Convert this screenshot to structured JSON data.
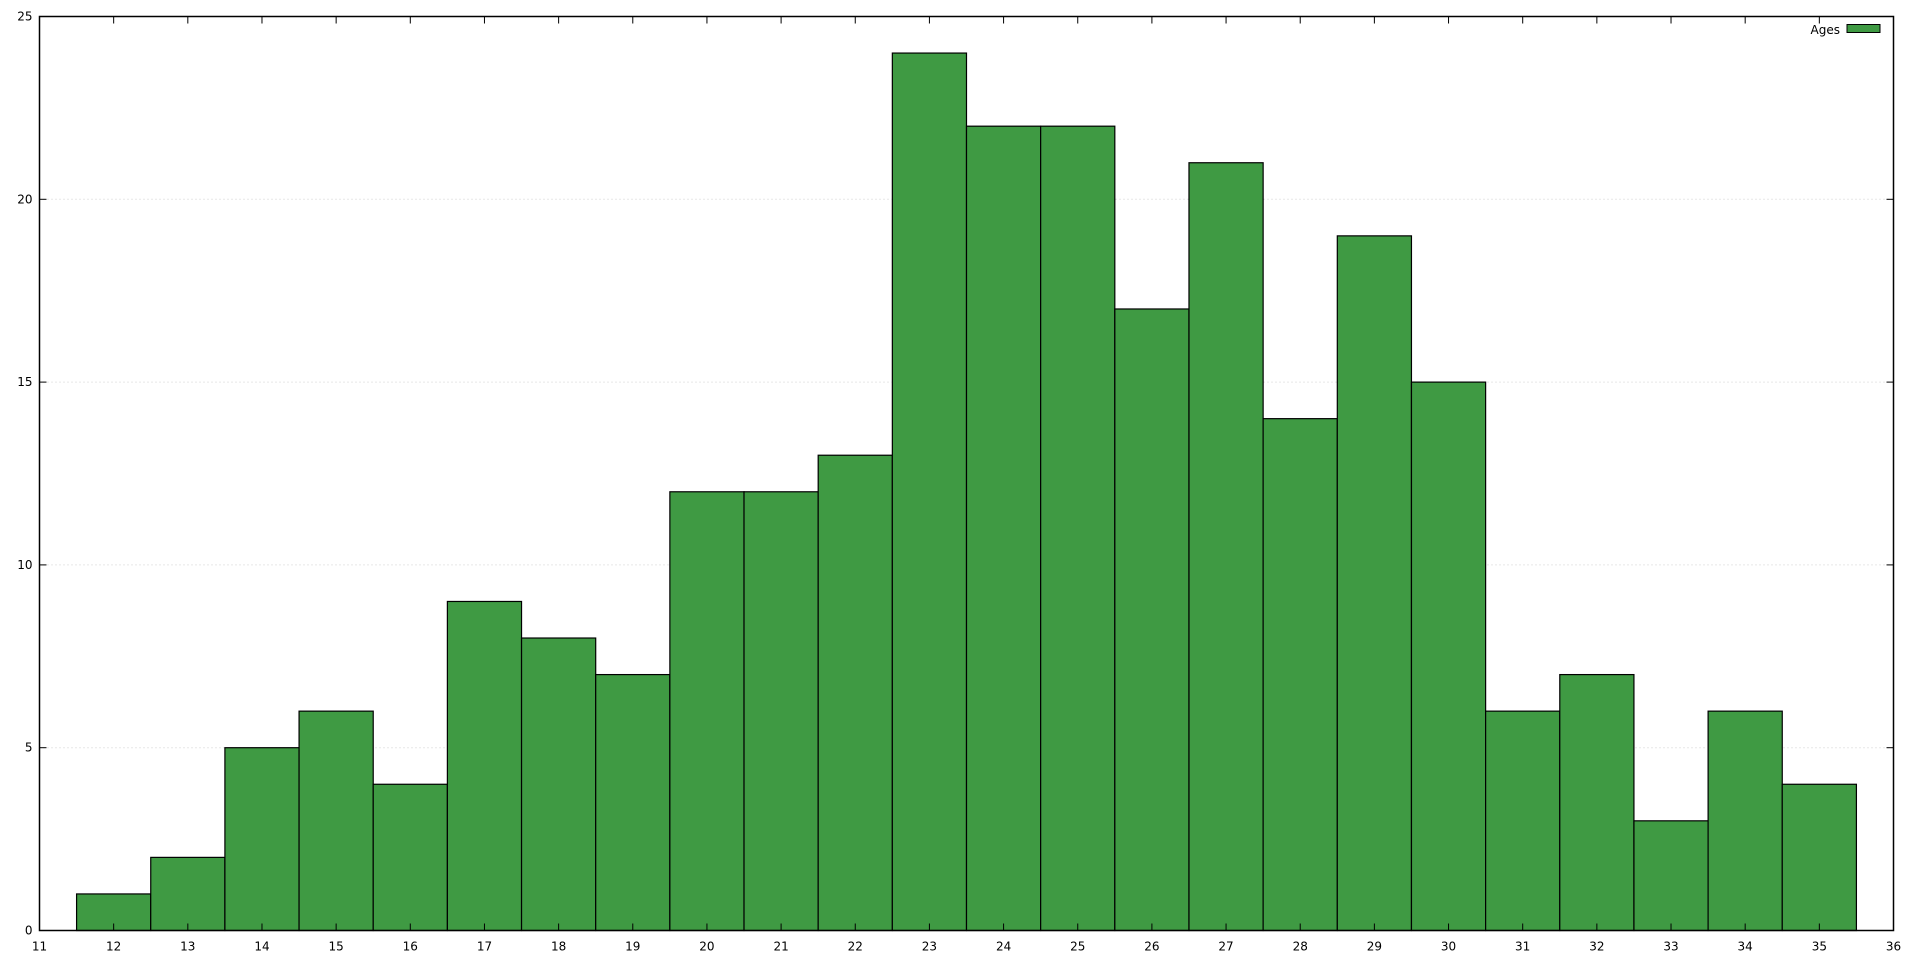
{
  "chart_data": {
    "type": "bar",
    "title": "",
    "xlabel": "",
    "ylabel": "",
    "x": [
      12,
      13,
      14,
      15,
      16,
      17,
      18,
      19,
      20,
      21,
      22,
      23,
      24,
      25,
      26,
      27,
      28,
      29,
      30,
      31,
      32,
      33,
      34,
      35
    ],
    "series": [
      {
        "name": "Ages",
        "values": [
          1,
          2,
          5,
          6,
          4,
          9,
          8,
          7,
          12,
          12,
          13,
          24,
          22,
          22,
          17,
          21,
          14,
          19,
          15,
          6,
          7,
          3,
          6,
          4
        ]
      }
    ],
    "xlim": [
      11,
      36
    ],
    "ylim": [
      0,
      25
    ],
    "xticks": [
      "11",
      "12",
      "13",
      "14",
      "15",
      "16",
      "17",
      "18",
      "19",
      "20",
      "21",
      "22",
      "23",
      "24",
      "25",
      "26",
      "27",
      "28",
      "29",
      "30",
      "31",
      "32",
      "33",
      "34",
      "35",
      "36"
    ],
    "yticks": [
      "0",
      "5",
      "10",
      "15",
      "20",
      "25"
    ],
    "grid": "horizontal-dotted",
    "legend": "top-right",
    "bar_width": 1,
    "colors": {
      "bar": "#3f9a43",
      "edge": "#000000",
      "grid": "#d0d0d0"
    }
  }
}
